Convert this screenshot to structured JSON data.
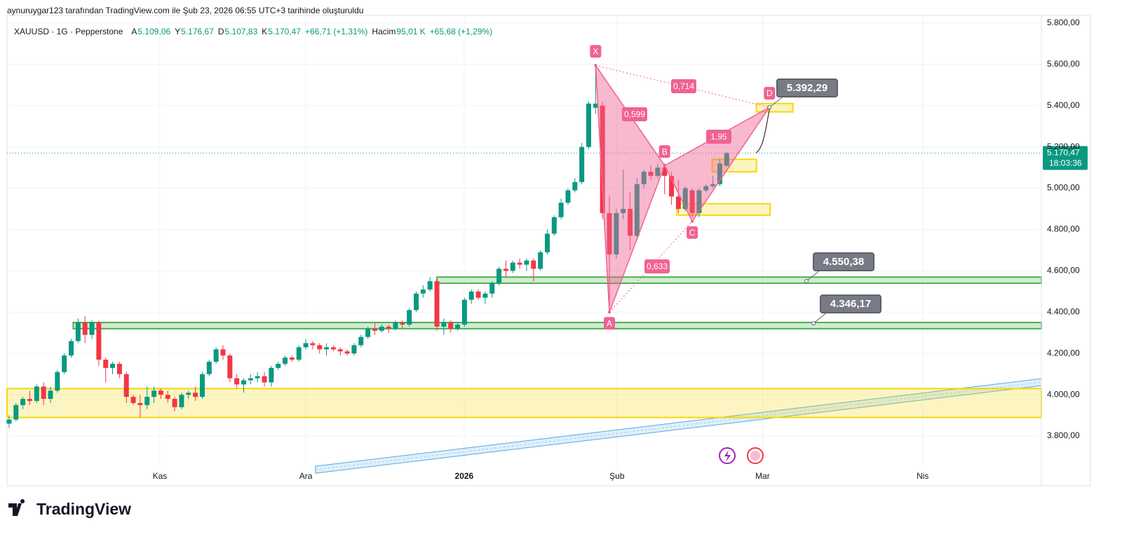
{
  "header": {
    "credit": "aynuruygar123 tarafından TradingView.com ile Şub 23, 2026 06:55 UTC+3 tarihinde oluşturuldu",
    "brand": "TradingView"
  },
  "chart_data": {
    "type": "candlestick",
    "symbol": "XAUUSD · 1G · Pepperstone",
    "legend": {
      "open_label": "A",
      "open": "5.109,06",
      "high_label": "Y",
      "high": "5.176,67",
      "low_label": "D",
      "low": "5.107,83",
      "close_label": "K",
      "close": "5.170,47",
      "change": "+66,71 (+1,31%)",
      "volume_label": "Hacim",
      "volume": "95,01 K",
      "volume_change": "+65,68 (+1,29%)"
    },
    "colors": {
      "up": "#089981",
      "down": "#f23645",
      "pattern": "#f06292"
    },
    "open": [
      3860,
      3880,
      3950,
      3980,
      3970,
      4040,
      3980,
      4020,
      4110,
      4190,
      4260,
      4350,
      4290,
      4350,
      4170,
      4130,
      4150,
      4100,
      3990,
      3960,
      3950,
      3990,
      4020,
      4000,
      3980,
      3940,
      4000,
      4010,
      3990,
      4100,
      4160,
      4220,
      4190,
      4080,
      4050,
      4070,
      4080,
      4090,
      4060,
      4130,
      4150,
      4180,
      4170,
      4230,
      4250,
      4240,
      4220,
      4230,
      4220,
      4210,
      4200,
      4240,
      4280,
      4320,
      4310,
      4330,
      4320,
      4350,
      4340,
      4410,
      4490,
      4510,
      4550,
      4330,
      4350,
      4320,
      4340,
      4460,
      4500,
      4470,
      4490,
      4540,
      4610,
      4600,
      4640,
      4630,
      4650,
      4610,
      4690,
      4780,
      4860,
      4930,
      4990,
      5030,
      5200,
      5390,
      5400,
      4880,
      4680,
      4880,
      4900,
      4770,
      5020,
      5080,
      5060,
      5100,
      5060,
      4960,
      4900,
      4990,
      4880,
      4990,
      5010,
      5020,
      5109.06
    ],
    "high": [
      3900,
      3960,
      3990,
      4020,
      4050,
      4060,
      4040,
      4120,
      4200,
      4270,
      4370,
      4380,
      4360,
      4360,
      4180,
      4160,
      4160,
      4110,
      4000,
      4000,
      4040,
      4040,
      4030,
      4020,
      3990,
      4010,
      4020,
      4040,
      4110,
      4170,
      4230,
      4240,
      4200,
      4100,
      4080,
      4100,
      4110,
      4110,
      4140,
      4160,
      4190,
      4190,
      4240,
      4270,
      4260,
      4250,
      4250,
      4240,
      4230,
      4220,
      4250,
      4290,
      4330,
      4350,
      4340,
      4340,
      4360,
      4360,
      4420,
      4500,
      4530,
      4570,
      4560,
      4370,
      4360,
      4350,
      4470,
      4510,
      4510,
      4500,
      4550,
      4620,
      4650,
      4650,
      4660,
      4660,
      4660,
      4700,
      4800,
      4870,
      4950,
      5000,
      5050,
      5220,
      5420,
      5595,
      5420,
      4960,
      4900,
      5090,
      4980,
      5050,
      5090,
      5110,
      5120,
      5120,
      5080,
      5040,
      5010,
      5000,
      5000,
      5020,
      5060,
      5140,
      5176.67
    ],
    "low": [
      3840,
      3870,
      3930,
      3950,
      3960,
      3950,
      3960,
      4010,
      4100,
      4180,
      4250,
      4250,
      4270,
      4140,
      4060,
      4100,
      4080,
      3960,
      3950,
      3890,
      3930,
      3960,
      3980,
      3960,
      3920,
      3930,
      3980,
      3970,
      3980,
      4090,
      4150,
      4170,
      4060,
      4030,
      4010,
      4050,
      4060,
      4040,
      4040,
      4120,
      4140,
      4160,
      4160,
      4220,
      4220,
      4200,
      4190,
      4210,
      4190,
      4190,
      4190,
      4230,
      4270,
      4290,
      4300,
      4300,
      4310,
      4320,
      4330,
      4400,
      4470,
      4500,
      4310,
      4290,
      4300,
      4310,
      4330,
      4440,
      4460,
      4440,
      4470,
      4530,
      4570,
      4590,
      4610,
      4600,
      4550,
      4600,
      4680,
      4770,
      4850,
      4920,
      4980,
      5020,
      5190,
      5360,
      4850,
      4400,
      4660,
      4850,
      4700,
      4750,
      5000,
      5040,
      5050,
      4970,
      4920,
      4880,
      4890,
      4860,
      4860,
      4980,
      5000,
      5010,
      5107.83
    ],
    "close": [
      3880,
      3950,
      3980,
      3970,
      4040,
      3980,
      4020,
      4110,
      4190,
      4260,
      4350,
      4290,
      4350,
      4170,
      4130,
      4150,
      4100,
      3990,
      3960,
      3950,
      3990,
      4020,
      4000,
      3980,
      3940,
      4000,
      4010,
      3990,
      4100,
      4160,
      4220,
      4190,
      4080,
      4050,
      4070,
      4080,
      4090,
      4060,
      4130,
      4150,
      4180,
      4170,
      4230,
      4250,
      4240,
      4220,
      4230,
      4220,
      4210,
      4200,
      4240,
      4280,
      4320,
      4310,
      4330,
      4320,
      4350,
      4340,
      4410,
      4490,
      4510,
      4550,
      4330,
      4350,
      4320,
      4340,
      4460,
      4500,
      4470,
      4490,
      4540,
      4610,
      4600,
      4640,
      4630,
      4650,
      4610,
      4690,
      4780,
      4860,
      4930,
      4990,
      5030,
      5200,
      5410,
      5410,
      4880,
      4680,
      4880,
      4900,
      4770,
      5020,
      5080,
      5060,
      5100,
      5060,
      4960,
      4900,
      5000,
      4880,
      4990,
      5010,
      5020,
      5120,
      5170.47
    ],
    "xlim": [
      -0.3,
      149.6
    ],
    "xticks": [
      {
        "value": 21.85,
        "label": "Kas"
      },
      {
        "value": 43,
        "label": "Ara"
      },
      {
        "value": 65.95,
        "label": "2026"
      },
      {
        "value": 88.1,
        "label": "Şub"
      },
      {
        "value": 109.2,
        "label": "Mar"
      },
      {
        "value": 132.4,
        "label": "Nis"
      }
    ],
    "ylim": [
      3644,
      5837
    ],
    "yticks": [
      {
        "value": 3800,
        "label": "3.800,00"
      },
      {
        "value": 4000,
        "label": "4.000,00"
      },
      {
        "value": 4200,
        "label": "4.200,00"
      },
      {
        "value": 4400,
        "label": "4.400,00"
      },
      {
        "value": 4600,
        "label": "4.600,00"
      },
      {
        "value": 4800,
        "label": "4.800,00"
      },
      {
        "value": 5000,
        "label": "5.000,00"
      },
      {
        "value": 5200,
        "label": "5.200,00"
      },
      {
        "value": 5400,
        "label": "5.400,00"
      },
      {
        "value": 5600,
        "label": "5.600,00"
      },
      {
        "value": 5800,
        "label": "5.800,00"
      }
    ],
    "grid": true,
    "last_price": {
      "value": 5170.47,
      "label": "5.170,47",
      "countdown": "18:03:36"
    },
    "zones": [
      {
        "low": 4540,
        "high": 4570,
        "x0": 62,
        "color": "#4caf50"
      },
      {
        "low": 4320,
        "high": 4350,
        "x0": 9.3,
        "color": "#4caf50"
      },
      {
        "low": 3890,
        "high": 4030,
        "x0": -0.3,
        "color": "#f5d90a"
      }
    ],
    "boxes": [
      {
        "low": 5370,
        "high": 5410,
        "x0": 108.3,
        "x1": 113.6,
        "color": "#f5d90a"
      },
      {
        "low": 5080,
        "high": 5140,
        "x0": 101.9,
        "x1": 108.3,
        "color": "#f5d90a"
      },
      {
        "low": 4870,
        "high": 4925,
        "x0": 96.8,
        "x1": 110.3,
        "color": "#f5d90a"
      }
    ],
    "pattern": [
      {
        "label": "X",
        "x": 85,
        "y": 5595
      },
      {
        "label": "A",
        "x": 87,
        "y": 4400
      },
      {
        "label": "B",
        "x": 95,
        "y": 5110
      },
      {
        "label": "C",
        "x": 99,
        "y": 4840
      },
      {
        "label": "D",
        "x": 110.2,
        "y": 5392.29
      }
    ],
    "ratios": [
      "0,714",
      "0,599",
      "1,95",
      "0,633"
    ],
    "price_tags": [
      {
        "value": 5392.29,
        "label": "5.392,29"
      },
      {
        "value": 4550.38,
        "label": "4.550,38"
      },
      {
        "value": 4346.17,
        "label": "4.346,17"
      }
    ],
    "trendline": {
      "x": [
        44.4,
        149.6
      ],
      "y": [
        3654,
        4078
      ]
    }
  }
}
